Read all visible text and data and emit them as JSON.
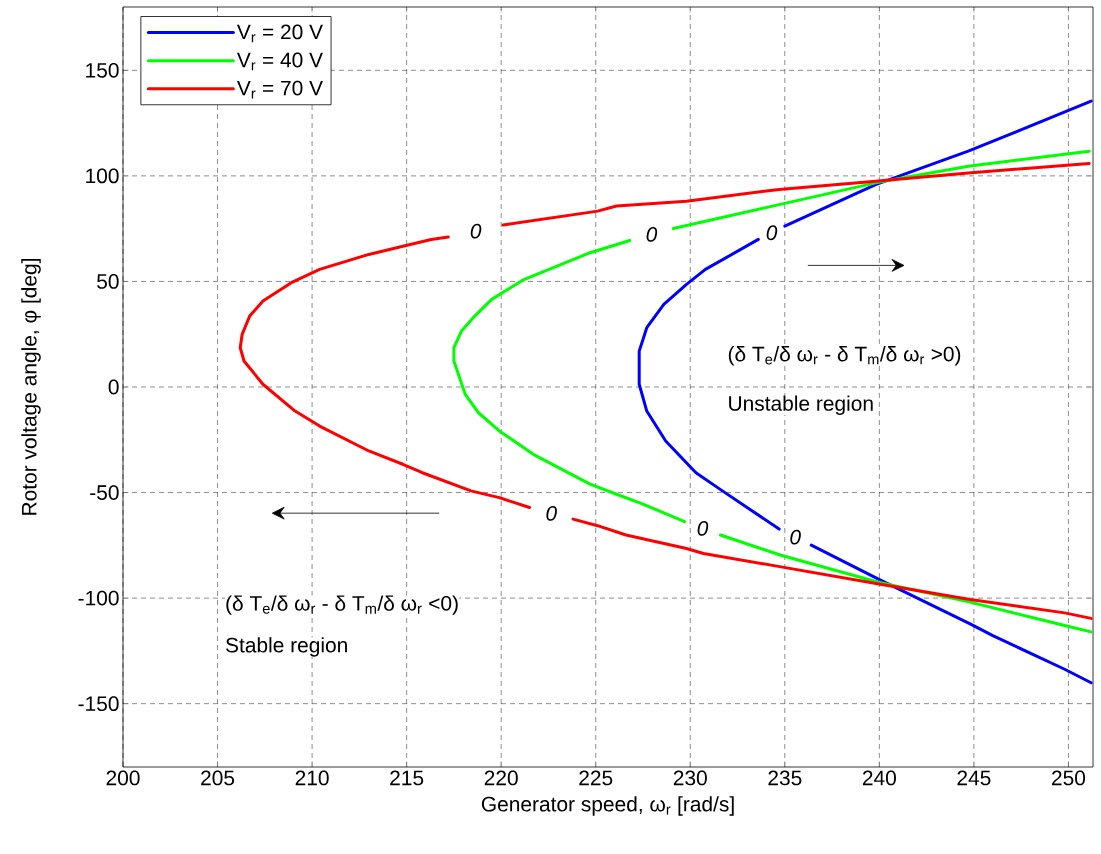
{
  "chart_data": {
    "type": "line",
    "xlabel": "Generator speed, ω$_{r}$ [rad/s]",
    "ylabel": "Rotor voltage angle, φ [deg]",
    "xlim": [
      200,
      251.3
    ],
    "ylim": [
      -180,
      180
    ],
    "xticks": [
      200,
      205,
      210,
      215,
      220,
      225,
      230,
      235,
      240,
      245,
      250
    ],
    "yticks": [
      -150,
      -100,
      -50,
      0,
      50,
      100,
      150
    ],
    "grid": true,
    "legend": "top left",
    "marker": "none",
    "line_style": "solid",
    "series": [
      {
        "name": "V$_{r}$ = 20 V",
        "color": "#0000ff",
        "x": [
          251.2,
          247.0,
          244.7,
          239.8,
          235.0,
          null,
          233.6,
          230.8,
          229.8,
          228.6,
          227.7,
          227.3,
          227.3,
          227.7,
          228.7,
          230.3,
          231.7,
          234.7,
          null,
          236.4,
          239.9,
          244.8,
          246.0,
          249.8,
          251.2
        ],
        "values": [
          135.4,
          120.0,
          111.7,
          95.9,
          76.2,
          null,
          69.9,
          55.7,
          48.6,
          39.1,
          28.1,
          17.0,
          1.3,
          -11.4,
          -25.6,
          -40.6,
          -49.2,
          -67.3,
          null,
          -74.9,
          -90.8,
          -112.2,
          -117.8,
          -133.7,
          -140.1
        ]
      },
      {
        "name": "V$_{r}$ = 40 V",
        "color": "#00ff00",
        "x": [
          251.1,
          244.7,
          239.8,
          234.7,
          229.1,
          null,
          226.8,
          224.7,
          221.2,
          219.5,
          218.6,
          217.9,
          217.5,
          217.5,
          218.1,
          218.8,
          219.9,
          221.7,
          224.7,
          226.1,
          227.4,
          229.7,
          null,
          231.6,
          234.8,
          239.9,
          244.8,
          249.8,
          251.2
        ],
        "values": [
          111.7,
          104.6,
          96.7,
          86.4,
          75.1,
          null,
          69.4,
          63.6,
          50.9,
          41.5,
          33.6,
          26.5,
          18.6,
          12.3,
          -3.5,
          -12.2,
          -20.8,
          -31.9,
          -46.0,
          -50.8,
          -55.1,
          -63.8,
          null,
          -70.1,
          -79.7,
          -92.4,
          -101.9,
          -113.0,
          -116.0
        ]
      },
      {
        "name": "V$_{r}$ = 70 V",
        "color": "#ff0000",
        "x": [
          251.1,
          244.7,
          239.8,
          234.7,
          229.8,
          226.1,
          225.1,
          220.1,
          null,
          217.2,
          216.3,
          214.8,
          213.0,
          210.4,
          208.9,
          207.4,
          206.7,
          206.3,
          206.2,
          206.4,
          207.4,
          209.1,
          210.4,
          213.0,
          214.8,
          215.8,
          218.4,
          219.9,
          221.5,
          null,
          223.8,
          225.1,
          226.6,
          229.8,
          230.7,
          234.8,
          239.9,
          244.8,
          249.8,
          251.2
        ],
        "values": [
          105.9,
          101.4,
          97.5,
          93.6,
          88.0,
          85.7,
          83.3,
          76.7,
          null,
          71.0,
          69.9,
          66.7,
          62.8,
          55.7,
          49.4,
          40.7,
          33.6,
          24.9,
          18.6,
          12.3,
          1.3,
          -11.4,
          -18.5,
          -30.3,
          -36.6,
          -40.5,
          -49.2,
          -52.4,
          -57.1,
          null,
          -62.6,
          -65.7,
          -70.1,
          -76.5,
          -78.9,
          -85.2,
          -93.2,
          -100.7,
          -107.0,
          -109.6
        ]
      }
    ],
    "annotations": [
      "0",
      "0",
      "0",
      "0",
      "0",
      "0",
      "(δ T$_{e}$/δ ω$_{r}$ - δ T$_{m}$/δ ω$_{r}$ >0)",
      "Unstable region",
      "(δ T$_{e}$/δ ω$_{r}$ - δ T$_{m}$/δ ω$_{r}$ <0)",
      "Stable region"
    ]
  }
}
